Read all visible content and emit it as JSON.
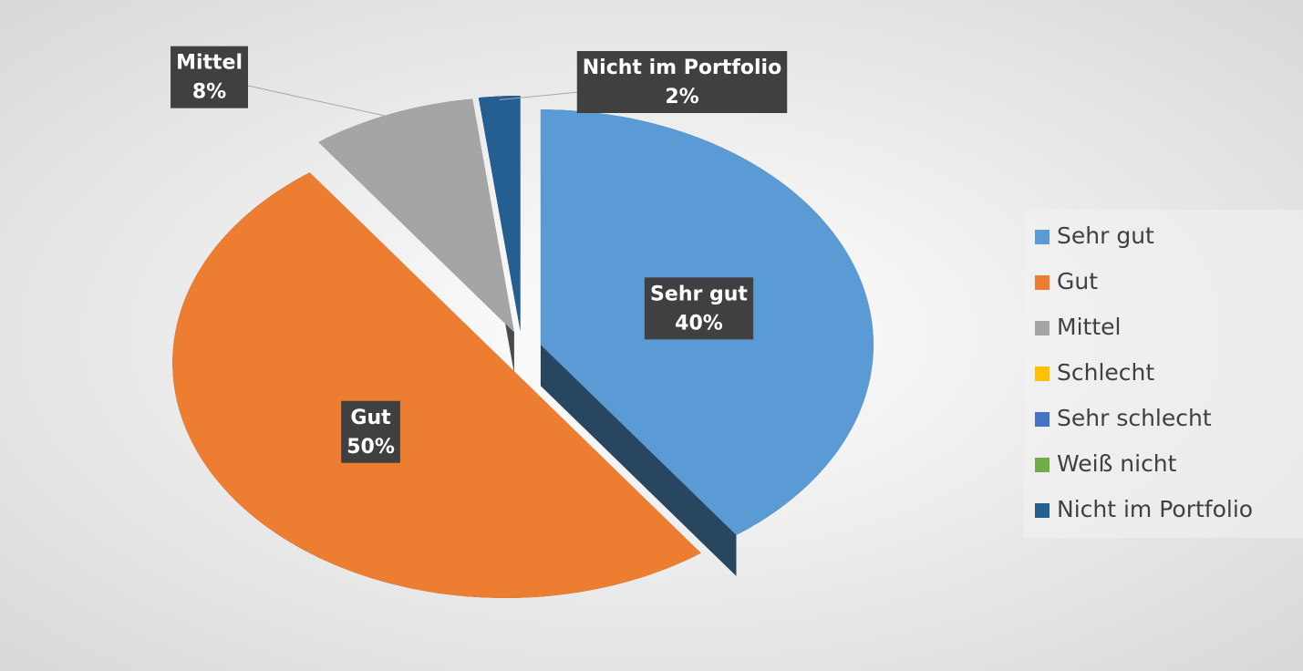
{
  "chart_data": {
    "type": "pie",
    "categories": [
      "Sehr gut",
      "Gut",
      "Mittel",
      "Schlecht",
      "Sehr schlecht",
      "Weiß nicht",
      "Nicht im Portfolio"
    ],
    "values": [
      40,
      50,
      8,
      0,
      0,
      0,
      2
    ],
    "value_labels": [
      "40%",
      "50%",
      "8%",
      null,
      null,
      null,
      "2%"
    ],
    "colors": [
      "#5b9bd5",
      "#ed7d31",
      "#a5a5a5",
      "#ffc000",
      "#4472c4",
      "#70ad47",
      "#255e91"
    ],
    "legend": "right"
  }
}
